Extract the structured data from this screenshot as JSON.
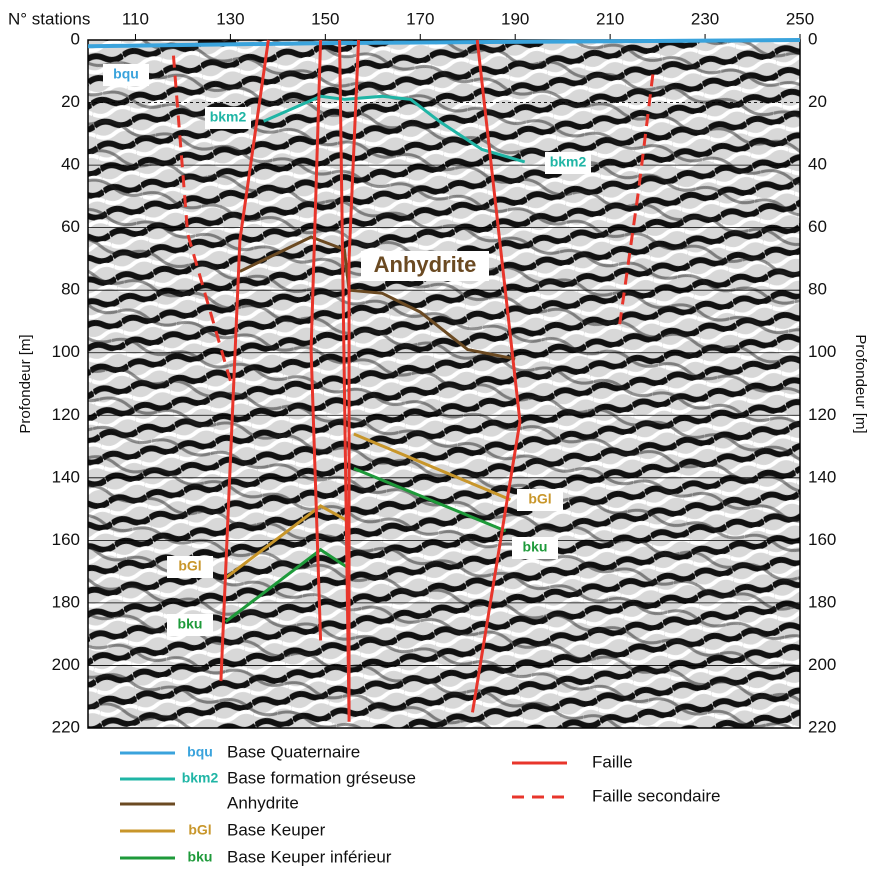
{
  "chart_data": {
    "type": "line",
    "x_label": "N° stations",
    "y_label": "Profondeur [m]",
    "xlim": [
      100,
      250
    ],
    "xticks": [
      110,
      130,
      150,
      170,
      190,
      210,
      230,
      250
    ],
    "ylim": [
      0,
      220
    ],
    "yticks": [
      0,
      20,
      40,
      60,
      80,
      100,
      120,
      140,
      160,
      180,
      200,
      220
    ],
    "y_inverted": true,
    "grid": true,
    "series": [
      {
        "name": "Base Quaternaire",
        "code": "bqu",
        "color": "#3aa3dc",
        "dashed": false,
        "x": [
          100,
          150,
          250
        ],
        "values": [
          2,
          1,
          0
        ]
      },
      {
        "name": "Base formation gréseuse",
        "code": "bkm2",
        "color": "#1fb5a5",
        "dashed": false,
        "x": [
          137,
          149,
          154,
          162,
          168,
          174,
          183,
          192
        ],
        "values": [
          26,
          18,
          19,
          18,
          19,
          26,
          35,
          39
        ]
      },
      {
        "name": "Anhydrite",
        "color": "#6b4a22",
        "dashed": false,
        "x": [
          132,
          147,
          154,
          155,
          162,
          170,
          180,
          190
        ],
        "values": [
          74,
          63,
          67,
          80,
          81,
          87,
          99,
          102
        ]
      },
      {
        "name": "Base Keuper",
        "code": "bGl",
        "color": "#c8962a",
        "dashed": false,
        "x": [
          129,
          149,
          155,
          null,
          156,
          189
        ],
        "values": [
          172,
          149,
          154,
          null,
          126,
          147
        ]
      },
      {
        "name": "Base Keuper inférieur",
        "code": "bku",
        "color": "#1e9a3a",
        "dashed": false,
        "x": [
          129,
          149,
          155,
          null,
          156,
          188
        ],
        "values": [
          186,
          163,
          169,
          null,
          137,
          157
        ]
      },
      {
        "name": "Faille",
        "color": "#e8352b",
        "dashed": false,
        "x": [
          128,
          132,
          138,
          null,
          149,
          147,
          149,
          null,
          155,
          154,
          153,
          null,
          157,
          155,
          155,
          null,
          181,
          191,
          182
        ],
        "values": [
          205,
          64,
          0,
          null,
          192,
          99,
          0,
          null,
          217,
          109,
          0,
          null,
          0,
          70,
          218,
          null,
          215,
          122,
          0
        ]
      },
      {
        "name": "Faille secondaire",
        "color": "#e8352b",
        "dashed": true,
        "x": [
          118,
          121,
          130,
          null,
          219,
          216,
          212
        ],
        "values": [
          5,
          62,
          109,
          null,
          11,
          48,
          91
        ]
      }
    ]
  }
}
